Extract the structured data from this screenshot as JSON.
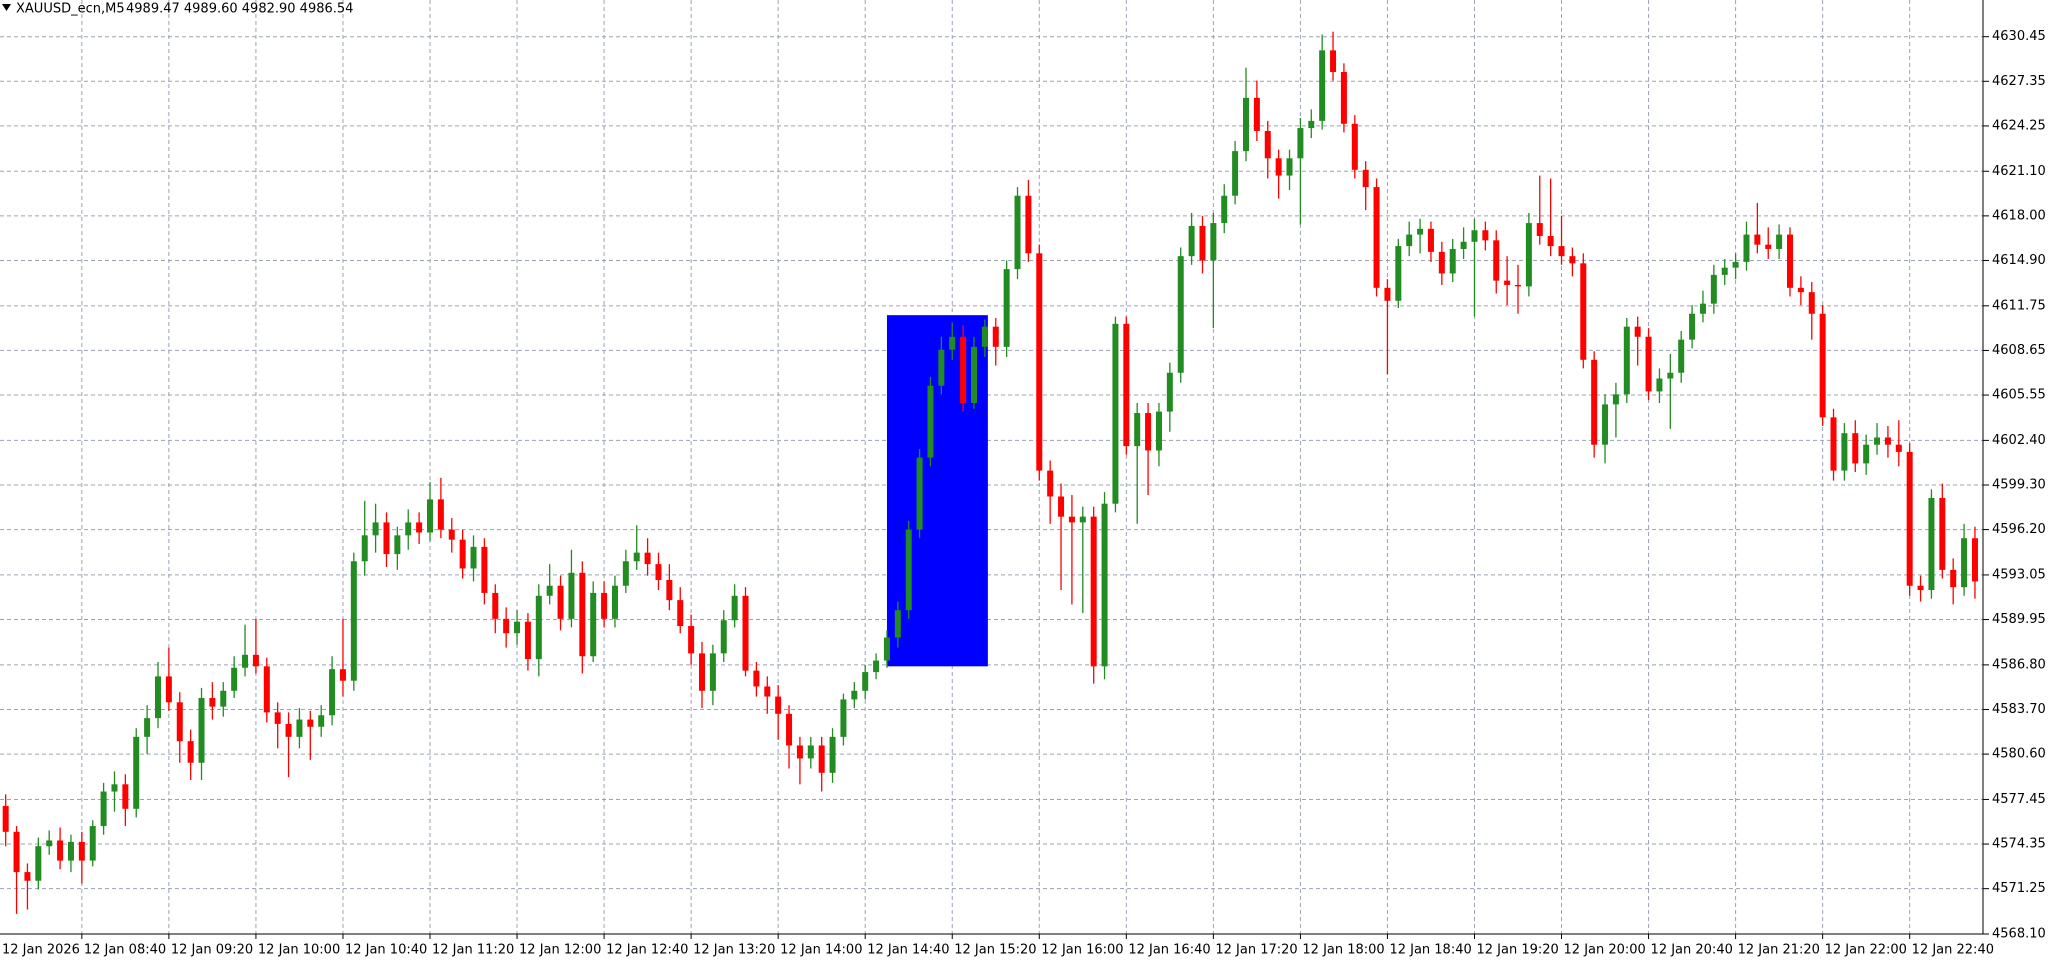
{
  "chart_data": {
    "type": "candlestick",
    "title": "XAUUSD_ecn,M5",
    "quote": "4989.47 4989.60 4982.90 4986.54",
    "up_color": "#228b22",
    "down_color": "#ff0000",
    "grid": true,
    "ylim": [
      4568.1,
      4633.0
    ],
    "yticks": [
      4630.45,
      4627.35,
      4624.25,
      {
        "value": 4621.1,
        "label": "4621.10"
      },
      {
        "value": 4618,
        "label": "4618.00"
      },
      {
        "value": 4614.9,
        "label": "4614.90"
      },
      4611.75,
      4608.65,
      4605.55,
      {
        "value": 4602.4,
        "label": "4602.40"
      },
      {
        "value": 4599.3,
        "label": "4599.30"
      },
      {
        "value": 4596.2,
        "label": "4596.20"
      },
      4593.05,
      4589.95,
      {
        "value": 4586.8,
        "label": "4586.80"
      },
      {
        "value": 4583.7,
        "label": "4583.70"
      },
      {
        "value": 4580.6,
        "label": "4580.60"
      },
      4577.45,
      4574.35,
      4571.25,
      {
        "value": 4568.1,
        "label": "4568.10"
      }
    ],
    "zone": {
      "color": "#0000ff",
      "top": 4611.1,
      "bottom": 4586.7,
      "first": 82,
      "last": 91
    },
    "categories": [
      "12 Jan 2026",
      null,
      null,
      null,
      null,
      null,
      null,
      null,
      "12 Jan 08:40",
      null,
      null,
      null,
      null,
      null,
      null,
      null,
      "12 Jan 09:20",
      null,
      null,
      null,
      null,
      null,
      null,
      null,
      "12 Jan 10:00",
      null,
      null,
      null,
      null,
      null,
      null,
      null,
      "12 Jan 10:40",
      null,
      null,
      null,
      null,
      null,
      null,
      null,
      "12 Jan 11:20",
      null,
      null,
      null,
      null,
      null,
      null,
      null,
      "12 Jan 12:00",
      null,
      null,
      null,
      null,
      null,
      null,
      null,
      "12 Jan 12:40",
      null,
      null,
      null,
      null,
      null,
      null,
      null,
      "12 Jan 13:20",
      null,
      null,
      null,
      null,
      null,
      null,
      null,
      "12 Jan 14:00",
      null,
      null,
      null,
      null,
      null,
      null,
      null,
      "12 Jan 14:40",
      null,
      null,
      null,
      null,
      null,
      null,
      null,
      "12 Jan 15:20",
      null,
      null,
      null,
      null,
      null,
      null,
      null,
      "12 Jan 16:00",
      null,
      null,
      null,
      null,
      null,
      null,
      null,
      "12 Jan 16:40",
      null,
      null,
      null,
      null,
      null,
      null,
      null,
      "12 Jan 17:20",
      null,
      null,
      null,
      null,
      null,
      null,
      null,
      "12 Jan 18:00",
      null,
      null,
      null,
      null,
      null,
      null,
      null,
      "12 Jan 18:40",
      null,
      null,
      null,
      null,
      null,
      null,
      null,
      "12 Jan 19:20",
      null,
      null,
      null,
      null,
      null,
      null,
      null,
      "12 Jan 20:00",
      null,
      null,
      null,
      null,
      null,
      null,
      null,
      "12 Jan 20:40",
      null,
      null,
      null,
      null,
      null,
      null,
      null,
      "12 Jan 21:20",
      null,
      null,
      null,
      null,
      null,
      null,
      null,
      "12 Jan 22:00",
      null,
      null,
      null,
      null,
      null,
      null,
      null,
      "12 Jan 22:40",
      null,
      null,
      null,
      null,
      null,
      null
    ],
    "ohlc": [
      [
        4580.0,
        4581.5,
        4577.5,
        4578.0
      ],
      [
        4577.0,
        4577.8,
        4574.2,
        4575.2
      ],
      [
        4575.2,
        4575.6,
        4569.5,
        4572.4
      ],
      [
        4572.4,
        4573.0,
        4569.8,
        4571.8
      ],
      [
        4571.8,
        4574.8,
        4571.2,
        4574.2
      ],
      [
        4574.2,
        4575.3,
        4573.6,
        4574.6
      ],
      [
        4574.6,
        4575.5,
        4572.6,
        4573.2
      ],
      [
        4573.2,
        4575.0,
        4572.4,
        4574.5
      ],
      [
        4574.5,
        4575.2,
        4571.6,
        4573.2
      ],
      [
        4573.2,
        4576.0,
        4572.8,
        4575.6
      ],
      [
        4575.6,
        4578.6,
        4575.0,
        4578.0
      ],
      [
        4578.0,
        4579.4,
        4576.6,
        4578.5
      ],
      [
        4578.5,
        4579.2,
        4575.6,
        4576.8
      ],
      [
        4576.8,
        4582.4,
        4576.2,
        4581.8
      ],
      [
        4581.8,
        4584.0,
        4580.6,
        4583.1
      ],
      [
        4583.1,
        4587.0,
        4582.4,
        4586.0
      ],
      [
        4586.0,
        4588.0,
        4583.6,
        4584.2
      ],
      [
        4584.2,
        4584.9,
        4580.0,
        4581.5
      ],
      [
        4581.5,
        4582.3,
        4578.8,
        4580.0
      ],
      [
        4580.0,
        4585.2,
        4578.8,
        4584.5
      ],
      [
        4584.5,
        4585.6,
        4583.0,
        4583.9
      ],
      [
        4583.9,
        4585.6,
        4583.2,
        4585.0
      ],
      [
        4585.0,
        4587.4,
        4584.5,
        4586.6
      ],
      [
        4586.6,
        4589.6,
        4586.0,
        4587.5
      ],
      [
        4587.5,
        4590.0,
        4586.2,
        4586.7
      ],
      [
        4586.7,
        4587.3,
        4582.8,
        4583.5
      ],
      [
        4583.5,
        4584.2,
        4581.0,
        4582.7
      ],
      [
        4582.7,
        4583.5,
        4579.0,
        4581.8
      ],
      [
        4581.8,
        4583.8,
        4581.0,
        4583.0
      ],
      [
        4583.0,
        4583.6,
        4580.2,
        4582.5
      ],
      [
        4582.5,
        4584.0,
        4581.8,
        4583.3
      ],
      [
        4583.3,
        4587.4,
        4582.6,
        4586.5
      ],
      [
        4586.5,
        4590.0,
        4584.6,
        4585.7
      ],
      [
        4585.7,
        4594.6,
        4585.0,
        4594.0
      ],
      [
        4594.0,
        4598.2,
        4593.0,
        4595.8
      ],
      [
        4595.8,
        4598.0,
        4594.6,
        4596.7
      ],
      [
        4596.7,
        4597.4,
        4593.6,
        4594.5
      ],
      [
        4594.5,
        4596.4,
        4593.4,
        4595.8
      ],
      [
        4595.8,
        4597.6,
        4594.8,
        4596.7
      ],
      [
        4596.7,
        4597.4,
        4595.2,
        4596.0
      ],
      [
        4596.0,
        4599.5,
        4595.4,
        4598.3
      ],
      [
        4598.3,
        4599.8,
        4595.6,
        4596.2
      ],
      [
        4596.2,
        4597.0,
        4594.6,
        4595.5
      ],
      [
        4595.5,
        4596.2,
        4592.8,
        4593.5
      ],
      [
        4593.5,
        4595.8,
        4592.6,
        4595.0
      ],
      [
        4595.0,
        4595.6,
        4591.0,
        4591.8
      ],
      [
        4591.8,
        4592.4,
        4589.0,
        4590.0
      ],
      [
        4590.0,
        4590.8,
        4588.0,
        4589.0
      ],
      [
        4589.0,
        4590.6,
        4588.2,
        4589.8
      ],
      [
        4589.8,
        4590.4,
        4586.4,
        4587.2
      ],
      [
        4587.2,
        4592.4,
        4586.0,
        4591.6
      ],
      [
        4591.6,
        4593.8,
        4591.0,
        4592.3
      ],
      [
        4592.3,
        4593.0,
        4589.2,
        4590.0
      ],
      [
        4590.0,
        4594.8,
        4589.4,
        4593.2
      ],
      [
        4593.2,
        4594.0,
        4586.2,
        4587.4
      ],
      [
        4587.4,
        4592.6,
        4587.0,
        4591.8
      ],
      [
        4591.8,
        4592.6,
        4589.4,
        4590.0
      ],
      [
        4590.0,
        4593.0,
        4589.4,
        4592.3
      ],
      [
        4592.3,
        4594.8,
        4591.8,
        4594.0
      ],
      [
        4594.0,
        4596.5,
        4593.4,
        4594.6
      ],
      [
        4594.6,
        4595.6,
        4593.0,
        4593.8
      ],
      [
        4593.8,
        4594.6,
        4592.0,
        4592.7
      ],
      [
        4592.7,
        4593.8,
        4590.6,
        4591.3
      ],
      [
        4591.3,
        4592.2,
        4589.0,
        4589.5
      ],
      [
        4589.5,
        4590.3,
        4586.8,
        4587.6
      ],
      [
        4587.6,
        4588.4,
        4583.8,
        4585.0
      ],
      [
        4585.0,
        4588.2,
        4584.0,
        4587.6
      ],
      [
        4587.6,
        4590.6,
        4587.0,
        4589.9
      ],
      [
        4589.9,
        4592.4,
        4589.4,
        4591.6
      ],
      [
        4591.6,
        4592.2,
        4586.0,
        4586.4
      ],
      [
        4586.4,
        4587.0,
        4584.6,
        4585.3
      ],
      [
        4585.3,
        4586.0,
        4583.4,
        4584.6
      ],
      [
        4584.6,
        4585.4,
        4581.6,
        4583.4
      ],
      [
        4583.4,
        4584.0,
        4579.6,
        4581.2
      ],
      [
        4581.2,
        4581.8,
        4578.5,
        4580.3
      ],
      [
        4580.3,
        4581.8,
        4579.6,
        4581.2
      ],
      [
        4581.2,
        4581.8,
        4578.0,
        4579.3
      ],
      [
        4579.3,
        4582.4,
        4578.6,
        4581.8
      ],
      [
        4581.8,
        4584.8,
        4581.2,
        4584.4
      ],
      [
        4584.4,
        4585.6,
        4583.8,
        4585.0
      ],
      [
        4585.0,
        4586.8,
        4584.4,
        4586.3
      ],
      [
        4586.3,
        4587.6,
        4585.8,
        4587.1
      ],
      [
        4587.1,
        4589.2,
        4586.6,
        4588.7
      ],
      [
        4588.7,
        4591.2,
        4588.0,
        4590.6
      ],
      [
        4590.6,
        4596.8,
        4590.0,
        4596.2
      ],
      [
        4596.2,
        4601.8,
        4595.6,
        4601.2
      ],
      [
        4601.2,
        4606.8,
        4600.6,
        4606.2
      ],
      [
        4606.2,
        4609.6,
        4605.6,
        4608.7
      ],
      [
        4608.7,
        4610.6,
        4608.0,
        4609.6
      ],
      [
        4609.6,
        4610.4,
        4604.4,
        4605.0
      ],
      [
        4605.0,
        4609.6,
        4604.6,
        4608.9
      ],
      [
        4608.9,
        4610.8,
        4608.2,
        4610.3
      ],
      [
        4610.3,
        4610.9,
        4607.6,
        4608.9
      ],
      [
        4608.9,
        4614.9,
        4608.2,
        4614.3
      ],
      [
        4614.3,
        4620.0,
        4613.6,
        4619.4
      ],
      [
        4619.4,
        4620.5,
        4614.8,
        4615.4
      ],
      [
        4615.4,
        4616.0,
        4599.6,
        4600.3
      ],
      [
        4600.3,
        4601.0,
        4596.6,
        4598.5
      ],
      [
        4598.5,
        4599.4,
        4592.0,
        4597.1
      ],
      [
        4597.1,
        4598.6,
        4591.0,
        4596.7
      ],
      [
        4596.7,
        4597.8,
        4590.4,
        4597.1
      ],
      [
        4597.1,
        4597.8,
        4585.5,
        4586.7
      ],
      [
        4586.7,
        4598.8,
        4585.8,
        4598.0
      ],
      [
        4598.0,
        4611.0,
        4597.4,
        4610.5
      ],
      [
        4610.5,
        4611.0,
        4601.4,
        4602.0
      ],
      [
        4602.0,
        4605.0,
        4596.6,
        4604.3
      ],
      [
        4604.3,
        4605.0,
        4598.6,
        4601.7
      ],
      [
        4601.7,
        4605.0,
        4600.6,
        4604.4
      ],
      [
        4604.4,
        4607.8,
        4603.0,
        4607.1
      ],
      [
        4607.1,
        4615.8,
        4606.4,
        4615.2
      ],
      [
        4615.2,
        4618.2,
        4614.6,
        4617.3
      ],
      [
        4617.3,
        4618.0,
        4614.0,
        4614.9
      ],
      [
        4614.9,
        4618.2,
        4610.2,
        4617.5
      ],
      [
        4617.5,
        4620.2,
        4616.8,
        4619.4
      ],
      [
        4619.4,
        4623.2,
        4618.8,
        4622.5
      ],
      [
        4622.5,
        4628.3,
        4621.8,
        4626.2
      ],
      [
        4626.2,
        4627.4,
        4623.2,
        4623.9
      ],
      [
        4623.9,
        4624.6,
        4620.6,
        4622.0
      ],
      [
        4622.0,
        4622.6,
        4619.2,
        4620.8
      ],
      [
        4620.8,
        4622.6,
        4619.8,
        4622.0
      ],
      [
        4622.0,
        4624.8,
        4617.4,
        4624.1
      ],
      [
        4624.1,
        4625.4,
        4623.4,
        4624.6
      ],
      [
        4624.6,
        4630.6,
        4624.0,
        4629.5
      ],
      [
        4629.5,
        4630.8,
        4627.4,
        4628.0
      ],
      [
        4628.0,
        4628.6,
        4623.8,
        4624.4
      ],
      [
        4624.4,
        4625.0,
        4620.6,
        4621.2
      ],
      [
        4621.2,
        4621.8,
        4618.4,
        4620.0
      ],
      [
        4620.0,
        4620.6,
        4612.4,
        4613.0
      ],
      [
        4613.0,
        4613.6,
        4607.0,
        4612.1
      ],
      [
        4612.1,
        4616.4,
        4611.6,
        4615.9
      ],
      [
        4615.9,
        4617.6,
        4615.2,
        4616.7
      ],
      [
        4616.7,
        4617.8,
        4615.4,
        4617.1
      ],
      [
        4617.1,
        4617.6,
        4614.8,
        4615.5
      ],
      [
        4615.5,
        4616.2,
        4613.2,
        4614.0
      ],
      [
        4614.0,
        4616.4,
        4613.4,
        4615.7
      ],
      [
        4615.7,
        4617.2,
        4615.0,
        4616.2
      ],
      [
        4616.2,
        4617.8,
        4611.0,
        4617.0
      ],
      [
        4617.0,
        4617.6,
        4615.6,
        4616.3
      ],
      [
        4616.3,
        4617.0,
        4612.6,
        4613.5
      ],
      [
        4613.5,
        4615.2,
        4611.8,
        4613.2
      ],
      [
        4613.2,
        4614.6,
        4611.2,
        4613.1
      ],
      [
        4613.1,
        4618.2,
        4612.4,
        4617.5
      ],
      [
        4617.5,
        4620.8,
        4616.0,
        4616.6
      ],
      [
        4616.6,
        4620.6,
        4615.2,
        4615.9
      ],
      [
        4615.9,
        4618.0,
        4614.6,
        4615.2
      ],
      [
        4615.2,
        4615.8,
        4613.8,
        4614.7
      ],
      [
        4614.7,
        4615.4,
        4607.4,
        4608.0
      ],
      [
        4608.0,
        4608.6,
        4601.2,
        4602.1
      ],
      [
        4602.1,
        4605.6,
        4600.8,
        4604.9
      ],
      [
        4604.9,
        4606.4,
        4602.6,
        4605.6
      ],
      [
        4605.6,
        4610.9,
        4605.0,
        4610.3
      ],
      [
        4610.3,
        4611.0,
        4607.6,
        4609.6
      ],
      [
        4609.6,
        4610.2,
        4605.2,
        4605.8
      ],
      [
        4605.8,
        4607.4,
        4605.0,
        4606.7
      ],
      [
        4606.7,
        4608.4,
        4603.2,
        4607.1
      ],
      [
        4607.1,
        4610.0,
        4606.4,
        4609.4
      ],
      [
        4609.4,
        4611.8,
        4608.8,
        4611.2
      ],
      [
        4611.2,
        4612.8,
        4610.6,
        4611.9
      ],
      [
        4611.9,
        4614.6,
        4611.2,
        4613.9
      ],
      [
        4613.9,
        4615.0,
        4613.2,
        4614.4
      ],
      [
        4614.4,
        4615.4,
        4613.6,
        4614.8
      ],
      [
        4614.8,
        4617.6,
        4614.2,
        4616.7
      ],
      [
        4616.7,
        4618.9,
        4615.4,
        4616.0
      ],
      [
        4616.0,
        4617.2,
        4615.0,
        4615.7
      ],
      [
        4615.7,
        4617.4,
        4615.0,
        4616.7
      ],
      [
        4616.7,
        4617.2,
        4612.4,
        4613.0
      ],
      [
        4613.0,
        4613.8,
        4611.8,
        4612.7
      ],
      [
        4612.7,
        4613.4,
        4609.4,
        4611.2
      ],
      [
        4611.2,
        4611.8,
        4603.4,
        4604.0
      ],
      [
        4604.0,
        4604.6,
        4599.6,
        4600.3
      ],
      [
        4600.3,
        4603.6,
        4599.6,
        4602.9
      ],
      [
        4602.9,
        4603.8,
        4600.2,
        4600.8
      ],
      [
        4600.8,
        4602.8,
        4600.0,
        4602.1
      ],
      [
        4602.1,
        4603.6,
        4601.4,
        4602.6
      ],
      [
        4602.6,
        4603.4,
        4601.2,
        4602.1
      ],
      [
        4602.1,
        4603.8,
        4600.6,
        4601.6
      ],
      [
        4601.6,
        4602.2,
        4591.6,
        4592.3
      ],
      [
        4592.3,
        4593.0,
        4591.2,
        4592.0
      ],
      [
        4592.0,
        4599.0,
        4591.4,
        4598.4
      ],
      [
        4598.4,
        4599.4,
        4592.8,
        4593.4
      ],
      [
        4593.4,
        4594.2,
        4591.0,
        4592.2
      ],
      [
        4592.2,
        4596.6,
        4591.6,
        4595.6
      ],
      [
        4595.6,
        4596.4,
        4591.4,
        4592.6
      ]
    ]
  }
}
